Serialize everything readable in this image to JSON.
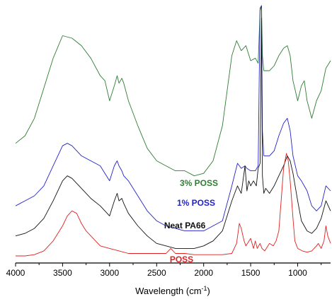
{
  "chart_data": {
    "type": "line",
    "title": "",
    "xlabel_main": "Wavelength (cm",
    "xlabel_sup": "-1",
    "xlabel_end": ")",
    "ylabel": "",
    "x_reversed": true,
    "xlim": [
      4000,
      650
    ],
    "ylim": [
      0,
      100
    ],
    "x_ticks": [
      4000,
      3500,
      3000,
      2500,
      2000,
      1500,
      1000
    ],
    "x_tick_labels": [
      "4000",
      "3500",
      "3000",
      "2500",
      "2000",
      "1500",
      "1000"
    ],
    "grid": false,
    "series": [
      {
        "name": "3% POSS",
        "color": "#2e7d32",
        "label_x": 2050,
        "label_y": 28,
        "x": [
          4000,
          3900,
          3800,
          3700,
          3600,
          3500,
          3400,
          3300,
          3200,
          3100,
          3050,
          3000,
          2950,
          2920,
          2900,
          2870,
          2850,
          2800,
          2700,
          2600,
          2500,
          2400,
          2300,
          2200,
          2100,
          2000,
          1900,
          1800,
          1700,
          1650,
          1600,
          1550,
          1500,
          1450,
          1420,
          1400,
          1385,
          1375,
          1360,
          1300,
          1250,
          1200,
          1150,
          1110,
          1080,
          1050,
          1000,
          960,
          930,
          900,
          850,
          800,
          750,
          700,
          650
        ],
        "y": [
          45,
          48,
          55,
          67,
          79,
          88,
          87,
          84,
          79,
          72,
          70,
          62,
          68,
          72,
          69,
          71,
          69,
          62,
          52,
          43,
          38,
          36,
          34,
          34,
          32,
          33,
          38,
          52,
          80,
          86,
          82,
          84,
          78,
          79,
          77,
          98,
          100,
          80,
          74,
          74,
          76,
          80,
          83,
          84,
          80,
          70,
          62,
          68,
          70,
          62,
          55,
          62,
          66,
          75,
          78
        ]
      },
      {
        "name": "1% POSS",
        "color": "#2222cc",
        "label_x": 2080,
        "label_y": 20,
        "x": [
          4000,
          3900,
          3800,
          3700,
          3600,
          3500,
          3450,
          3400,
          3300,
          3200,
          3100,
          3050,
          3000,
          2950,
          2920,
          2900,
          2870,
          2850,
          2800,
          2700,
          2600,
          2500,
          2400,
          2300,
          2200,
          2100,
          2000,
          1900,
          1800,
          1700,
          1640,
          1600,
          1560,
          1540,
          1500,
          1450,
          1420,
          1400,
          1385,
          1375,
          1360,
          1300,
          1250,
          1200,
          1150,
          1110,
          1080,
          1050,
          1000,
          960,
          930,
          900,
          850,
          800,
          750,
          700,
          650
        ],
        "y": [
          20,
          22,
          24,
          28,
          36,
          44,
          45,
          44,
          40,
          38,
          36,
          33,
          30,
          36,
          38,
          36,
          34,
          32,
          30,
          24,
          18,
          14,
          12,
          11,
          10,
          10,
          10,
          12,
          14,
          28,
          37,
          35,
          36,
          35,
          34,
          34,
          36,
          99,
          100,
          50,
          40,
          40,
          42,
          48,
          53,
          55,
          50,
          40,
          32,
          30,
          28,
          26,
          20,
          18,
          20,
          28,
          26
        ]
      },
      {
        "name": "Neat PA66",
        "color": "#111111",
        "label_x": 2200,
        "label_y": 11,
        "x": [
          4000,
          3900,
          3800,
          3700,
          3600,
          3500,
          3450,
          3400,
          3300,
          3200,
          3100,
          3050,
          3000,
          2950,
          2920,
          2900,
          2870,
          2850,
          2800,
          2700,
          2600,
          2500,
          2400,
          2300,
          2200,
          2100,
          2000,
          1900,
          1800,
          1700,
          1640,
          1600,
          1560,
          1540,
          1520,
          1500,
          1470,
          1440,
          1420,
          1400,
          1385,
          1375,
          1360,
          1340,
          1300,
          1250,
          1200,
          1150,
          1110,
          1080,
          1050,
          1000,
          960,
          930,
          900,
          850,
          800,
          750,
          700,
          650
        ],
        "y": [
          8,
          9,
          11,
          15,
          22,
          30,
          32,
          31,
          27,
          23,
          20,
          18,
          16,
          22,
          25,
          22,
          23,
          21,
          17,
          12,
          8,
          5,
          4,
          3,
          3,
          3,
          4,
          6,
          10,
          22,
          28,
          25,
          36,
          26,
          30,
          28,
          30,
          28,
          35,
          37,
          95,
          32,
          25,
          27,
          25,
          28,
          32,
          36,
          40,
          38,
          33,
          22,
          14,
          12,
          10,
          9,
          11,
          15,
          22,
          18
        ]
      },
      {
        "name": "POSS",
        "color": "#e02020",
        "label_x": 2235,
        "label_y": -2.5,
        "x": [
          4000,
          3900,
          3800,
          3700,
          3600,
          3500,
          3450,
          3400,
          3350,
          3300,
          3250,
          3200,
          3100,
          3000,
          2900,
          2800,
          2700,
          2600,
          2500,
          2400,
          2350,
          2300,
          2200,
          2100,
          2000,
          1900,
          1800,
          1700,
          1650,
          1620,
          1600,
          1570,
          1550,
          1500,
          1470,
          1450,
          1430,
          1400,
          1380,
          1350,
          1300,
          1260,
          1230,
          1200,
          1180,
          1150,
          1120,
          1100,
          1080,
          1050,
          1030,
          1000,
          950,
          900,
          850,
          800,
          780,
          750,
          720,
          700,
          680,
          650
        ],
        "y": [
          0,
          0,
          0.5,
          2,
          6,
          12,
          16,
          18,
          17,
          13,
          10,
          8,
          4,
          3,
          2,
          1,
          1,
          1,
          1,
          1,
          3,
          1,
          1,
          0.5,
          0.5,
          0.5,
          0.5,
          1,
          5,
          13,
          11,
          6,
          4,
          7,
          3,
          6,
          3,
          5,
          3,
          2,
          5,
          4,
          6,
          10,
          20,
          35,
          41,
          38,
          30,
          15,
          6,
          3,
          2,
          1.5,
          2,
          4,
          5,
          3,
          6,
          12,
          8,
          5
        ]
      }
    ]
  }
}
